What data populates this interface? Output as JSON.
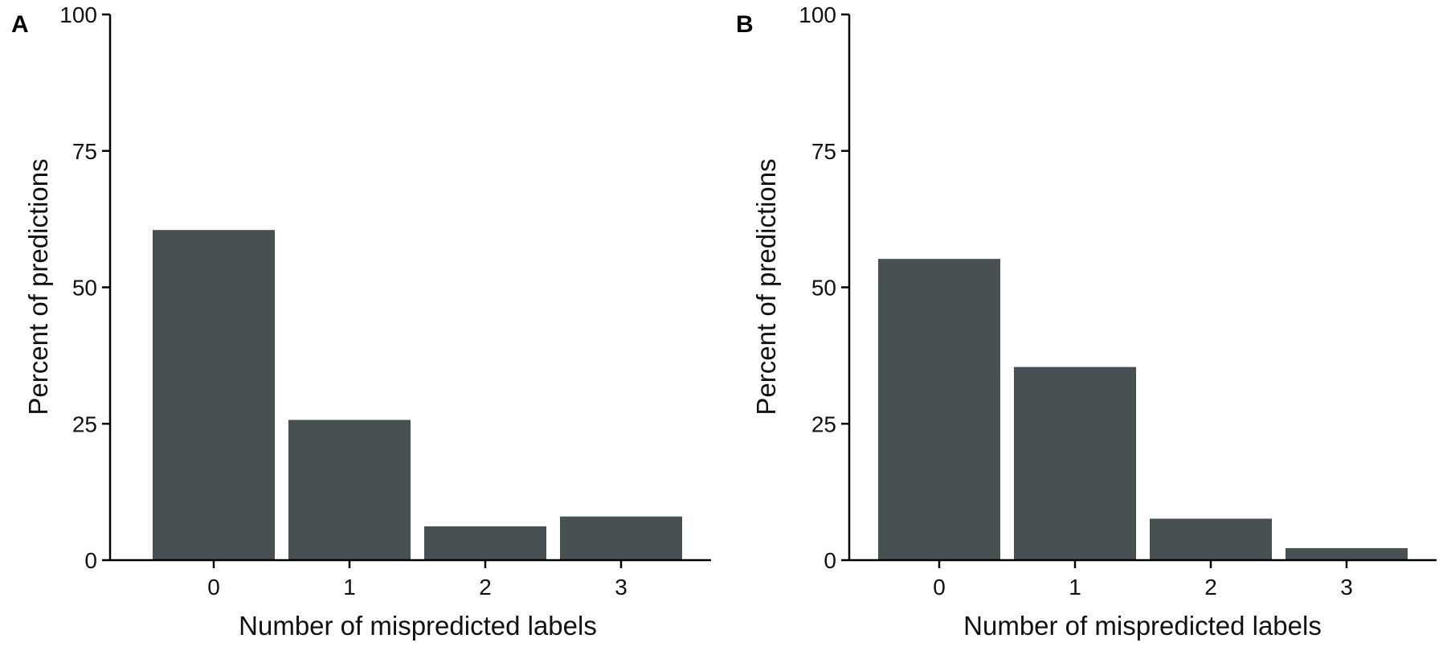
{
  "chart_data": [
    {
      "type": "bar",
      "panel": "A",
      "categories": [
        "0",
        "1",
        "2",
        "3"
      ],
      "values": [
        60.5,
        25.7,
        6.2,
        8.0
      ],
      "title": "",
      "xlabel": "Number of mispredicted labels",
      "ylabel": "Percent of predictions",
      "ylim": [
        0,
        100
      ],
      "yticks": [
        "0",
        "25",
        "50",
        "75",
        "100"
      ],
      "bar_color": "#475052",
      "grid": false
    },
    {
      "type": "bar",
      "panel": "B",
      "categories": [
        "0",
        "1",
        "2",
        "3"
      ],
      "values": [
        55.2,
        35.4,
        7.6,
        2.2
      ],
      "title": "",
      "xlabel": "Number of mispredicted labels",
      "ylabel": "Percent of predictions",
      "ylim": [
        0,
        100
      ],
      "yticks": [
        "0",
        "25",
        "50",
        "75",
        "100"
      ],
      "bar_color": "#475052",
      "grid": false
    }
  ]
}
